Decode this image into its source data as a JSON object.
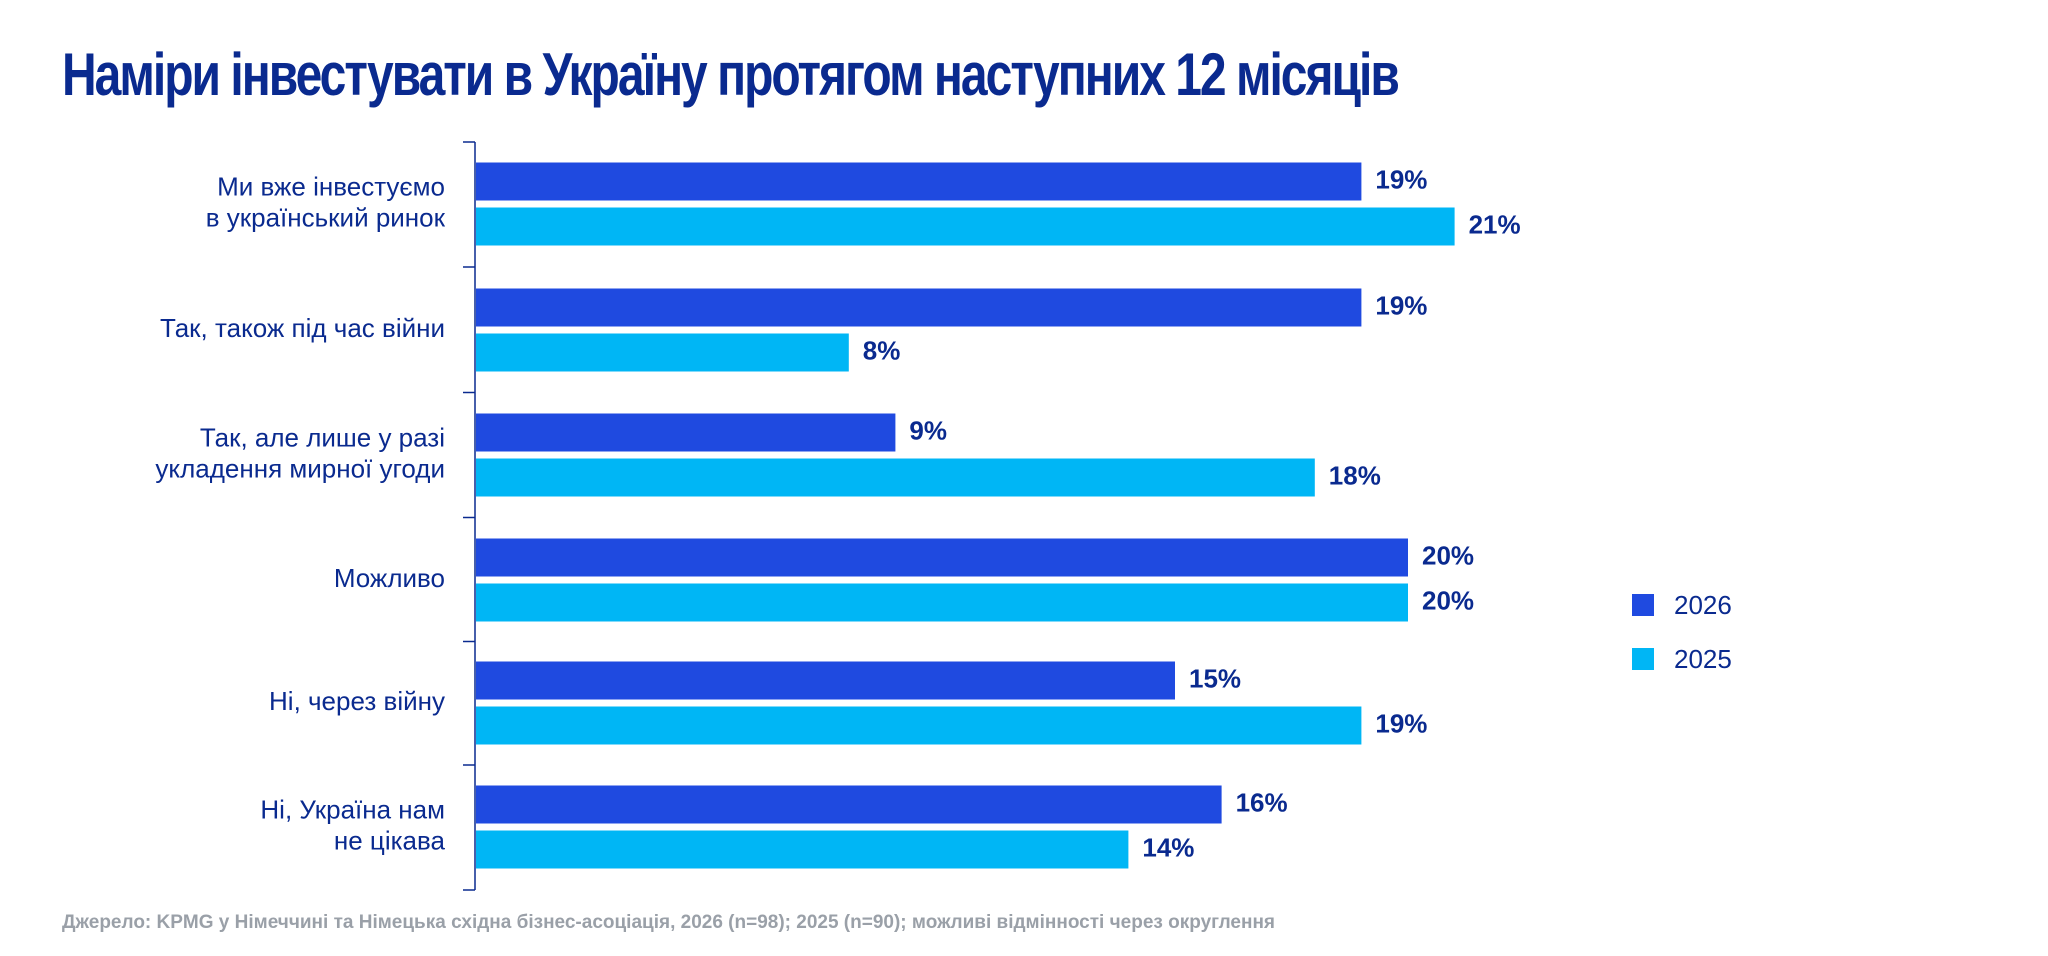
{
  "title": "Наміри інвестувати в Україну протягом наступних 12 місяців",
  "source": "Джерело: KPMG у Німеччині та Німецька східна бізнес-асоціація, 2026 (n=98); 2025 (n=90); можливі відмінності через округлення",
  "colors": {
    "series_2026": "#1f4ae0",
    "series_2025": "#00b6f5",
    "text": "#0a2a8f",
    "source_text": "#9aa0a8"
  },
  "chart_data": {
    "type": "bar",
    "orientation": "horizontal",
    "categories": [
      [
        "Ми вже інвестуємо",
        "в український ринок"
      ],
      [
        "Так, також під час війни"
      ],
      [
        "Так, але лише у разі",
        "укладення мирної угоди"
      ],
      [
        "Можливо"
      ],
      [
        "Ні, через війну"
      ],
      [
        "Ні, Україна нам",
        "не цікава"
      ]
    ],
    "series": [
      {
        "name": "2026",
        "values": [
          19,
          19,
          9,
          20,
          15,
          16
        ]
      },
      {
        "name": "2025",
        "values": [
          21,
          8,
          18,
          20,
          19,
          14
        ]
      }
    ],
    "value_suffix": "%",
    "xlim": [
      0,
      21
    ],
    "grid": false,
    "legend_position": "right"
  }
}
